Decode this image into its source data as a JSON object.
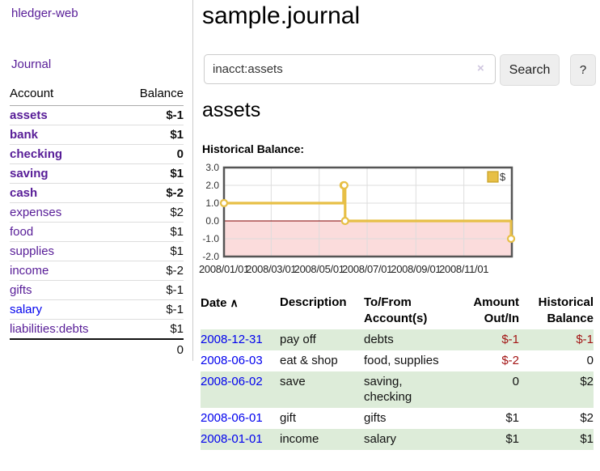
{
  "app": {
    "brand": "hledger-web"
  },
  "sidebar": {
    "nav_journal": "Journal",
    "table": {
      "account_header": "Account",
      "balance_header": "Balance",
      "rows": [
        {
          "account": "assets",
          "depth": 1,
          "balance": "$-1",
          "bold": true,
          "neg": "strong"
        },
        {
          "account": "bank",
          "depth": 2,
          "balance": "$1",
          "bold": true,
          "neg": ""
        },
        {
          "account": "checking",
          "depth": 3,
          "balance": "0",
          "bold": true,
          "neg": ""
        },
        {
          "account": "saving",
          "depth": 3,
          "balance": "$1",
          "bold": true,
          "neg": ""
        },
        {
          "account": "cash",
          "depth": 2,
          "balance": "$-2",
          "bold": true,
          "neg": "strong"
        },
        {
          "account": "expenses",
          "depth": 1,
          "balance": "$2",
          "bold": false,
          "neg": ""
        },
        {
          "account": "food",
          "depth": 2,
          "balance": "$1",
          "bold": false,
          "neg": ""
        },
        {
          "account": "supplies",
          "depth": 2,
          "balance": "$1",
          "bold": false,
          "neg": ""
        },
        {
          "account": "income",
          "depth": 1,
          "balance": "$-2",
          "bold": false,
          "neg": "faded"
        },
        {
          "account": "gifts",
          "depth": 2,
          "balance": "$-1",
          "bold": false,
          "neg": "faded"
        },
        {
          "account": "salary",
          "depth": 2,
          "balance": "$-1",
          "bold": false,
          "neg": "faded",
          "unvisited": true
        },
        {
          "account": "liabilities:debts",
          "depth": 1,
          "balance": "$1",
          "bold": false,
          "neg": ""
        }
      ],
      "total": "0"
    }
  },
  "header": {
    "title": "sample.journal"
  },
  "search": {
    "value": "inacct:assets",
    "clear_icon": "×",
    "search_button": "Search",
    "help_button": "?"
  },
  "account_page": {
    "heading": "assets",
    "chart_title": "Historical Balance:"
  },
  "chart_data": {
    "type": "line",
    "step": true,
    "title": "Historical Balance:",
    "legend": [
      "$"
    ],
    "legend_position": "top-right",
    "grid": true,
    "ylim": [
      -2,
      3
    ],
    "yticks": [
      3,
      2,
      1,
      0,
      -1,
      -2
    ],
    "ytick_labels": [
      "3.0",
      "2.0",
      "1.0",
      "0.0",
      "-1.0",
      "-2.0"
    ],
    "xticks": [
      {
        "label": "2008/01/01",
        "f": 0.0
      },
      {
        "label": "2008/03/01",
        "f": 0.1639
      },
      {
        "label": "2008/05/01",
        "f": 0.3306
      },
      {
        "label": "2008/07/01",
        "f": 0.4973
      },
      {
        "label": "2008/09/01",
        "f": 0.6667
      },
      {
        "label": "2008/11/01",
        "f": 0.8333
      }
    ],
    "series": [
      {
        "name": "$",
        "points": [
          {
            "date": "2008-01-01",
            "f": 0.0,
            "balance": 1
          },
          {
            "date": "2008-06-01",
            "f": 0.4153,
            "balance": 2
          },
          {
            "date": "2008-06-02",
            "f": 0.418,
            "balance": 2
          },
          {
            "date": "2008-06-03",
            "f": 0.4208,
            "balance": 0
          },
          {
            "date": "2008-12-31",
            "f": 0.9973,
            "balance": -1
          }
        ]
      }
    ]
  },
  "register": {
    "headers": {
      "date": "Date",
      "sort_icon": "∧",
      "description": "Description",
      "accounts": "To/From Account(s)",
      "amount": "Amount Out/In",
      "balance": "Historical Balance"
    },
    "rows": [
      {
        "date": "2008-12-31",
        "description": "pay off",
        "accounts": "debts",
        "amount": "$-1",
        "amount_neg": true,
        "balance": "$-1",
        "balance_neg": true
      },
      {
        "date": "2008-06-03",
        "description": "eat & shop",
        "accounts": "food, supplies",
        "amount": "$-2",
        "amount_neg": true,
        "balance": "0",
        "balance_neg": false
      },
      {
        "date": "2008-06-02",
        "description": "save",
        "accounts": "saving, checking",
        "amount": "0",
        "amount_neg": false,
        "balance": "$2",
        "balance_neg": false
      },
      {
        "date": "2008-06-01",
        "description": "gift",
        "accounts": "gifts",
        "amount": "$1",
        "amount_neg": false,
        "balance": "$2",
        "balance_neg": false
      },
      {
        "date": "2008-01-01",
        "description": "income",
        "accounts": "salary",
        "amount": "$1",
        "amount_neg": false,
        "balance": "$1",
        "balance_neg": false
      }
    ]
  },
  "colors": {
    "link_purple": "#571c97",
    "link_blue": "#0000ee",
    "negative_strong": "#a31515",
    "negative_faded": "#bd7b7b",
    "row_stripe_green": "#ddecd9",
    "chart_line_gold": "#e7bf46",
    "chart_legend_border": "#c9a227",
    "chart_below_zero_pink": "#fbdcdc",
    "chart_zero_line": "#800000",
    "button_bg": "#eeeeee"
  }
}
